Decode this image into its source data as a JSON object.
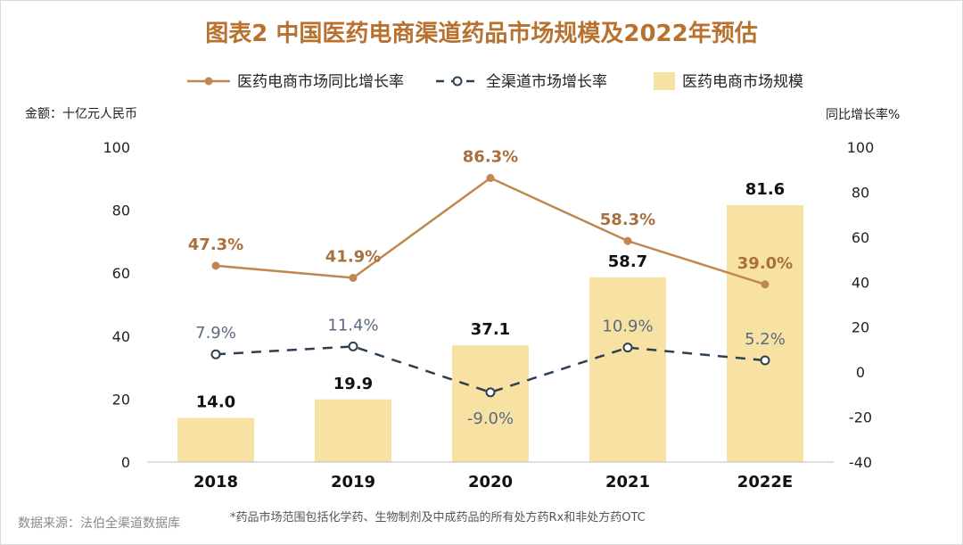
{
  "title": "图表2 中国医药电商渠道药品市场规模及2022年预估",
  "left_axis_caption": "金额：十亿元人民币",
  "right_axis_caption": "同比增长率%",
  "source": "数据来源：法伯全渠道数据库",
  "note": "*药品市场范围包括化学药、生物制剂及中成药品的所有处方药Rx和非处方药OTC",
  "colors": {
    "bar": "#f7e2a4",
    "ecom_line": "#c08850",
    "all_line": "#2f3f52",
    "title": "#b8722f"
  },
  "chart_data": {
    "type": "bar",
    "categories": [
      "2018",
      "2019",
      "2020",
      "2021",
      "2022E"
    ],
    "ylim": [
      0,
      100
    ],
    "yticks": [
      "0",
      "20",
      "40",
      "60",
      "80",
      "100"
    ],
    "y2lim": [
      -40,
      100
    ],
    "y2ticks": [
      "-40",
      "-20",
      "0",
      "20",
      "40",
      "60",
      "80",
      "100"
    ],
    "legend_position": "top",
    "series": [
      {
        "name": "医药电商市场规模",
        "type": "bar",
        "axis": "left",
        "values": [
          14.0,
          19.9,
          37.1,
          58.7,
          81.6
        ],
        "labels": [
          "14.0",
          "19.9",
          "37.1",
          "58.7",
          "81.6"
        ]
      },
      {
        "name": "医药电商市场同比增长率",
        "type": "line",
        "axis": "right",
        "style": "solid",
        "values": [
          47.3,
          41.9,
          86.3,
          58.3,
          39.0
        ],
        "labels": [
          "47.3%",
          "41.9%",
          "86.3%",
          "58.3%",
          "39.0%"
        ]
      },
      {
        "name": "全渠道市场增长率",
        "type": "line",
        "axis": "right",
        "style": "dashed",
        "values": [
          7.9,
          11.4,
          -9.0,
          10.9,
          5.2
        ],
        "labels": [
          "7.9%",
          "11.4%",
          "-9.0%",
          "10.9%",
          "5.2%"
        ]
      }
    ]
  }
}
